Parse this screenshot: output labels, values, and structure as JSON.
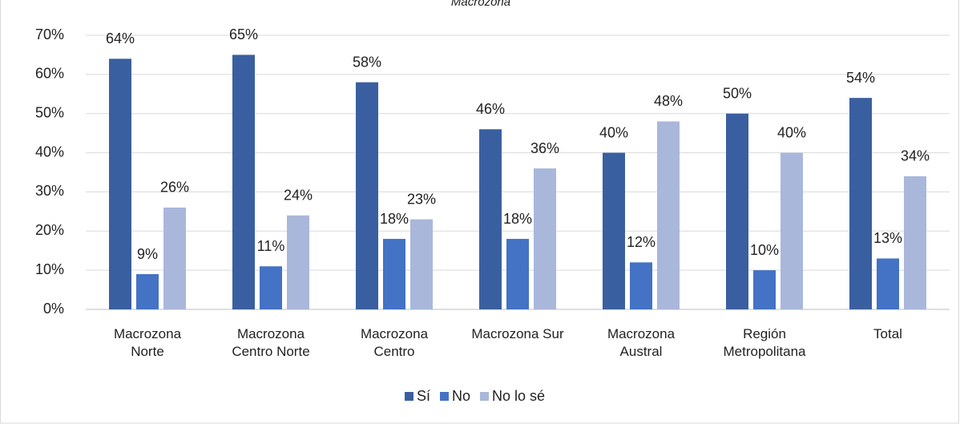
{
  "chart_data": {
    "type": "bar",
    "title": "Macrozona",
    "categories": [
      "Macrozona Norte",
      "Macrozona Centro Norte",
      "Macrozona Centro",
      "Macrozona Sur",
      "Macrozona Austral",
      "Región Metropolitana",
      "Total"
    ],
    "series": [
      {
        "name": "Sí",
        "color": "#3a5fa0",
        "values": [
          64,
          65,
          58,
          46,
          40,
          50,
          54
        ],
        "value_labels": [
          "64%",
          "65%",
          "58%",
          "46%",
          "40%",
          "50%",
          "54%"
        ]
      },
      {
        "name": "No",
        "color": "#4472c4",
        "values": [
          9,
          11,
          18,
          18,
          12,
          10,
          13
        ],
        "value_labels": [
          "9%",
          "11%",
          "18%",
          "18%",
          "12%",
          "10%",
          "13%"
        ]
      },
      {
        "name": "No lo sé",
        "color": "#a9b7db",
        "values": [
          26,
          24,
          23,
          36,
          48,
          40,
          34
        ],
        "value_labels": [
          "26%",
          "24%",
          "23%",
          "36%",
          "48%",
          "40%",
          "34%"
        ]
      }
    ],
    "ylim": [
      0,
      70
    ],
    "yticks": [
      {
        "value": 0,
        "label": "0%"
      },
      {
        "value": 10,
        "label": "10%"
      },
      {
        "value": 20,
        "label": "20%"
      },
      {
        "value": 30,
        "label": "30%"
      },
      {
        "value": 40,
        "label": "40%"
      },
      {
        "value": 50,
        "label": "50%"
      },
      {
        "value": 60,
        "label": "60%"
      },
      {
        "value": 70,
        "label": "70%"
      }
    ],
    "grid": true,
    "legend": "bottom"
  }
}
